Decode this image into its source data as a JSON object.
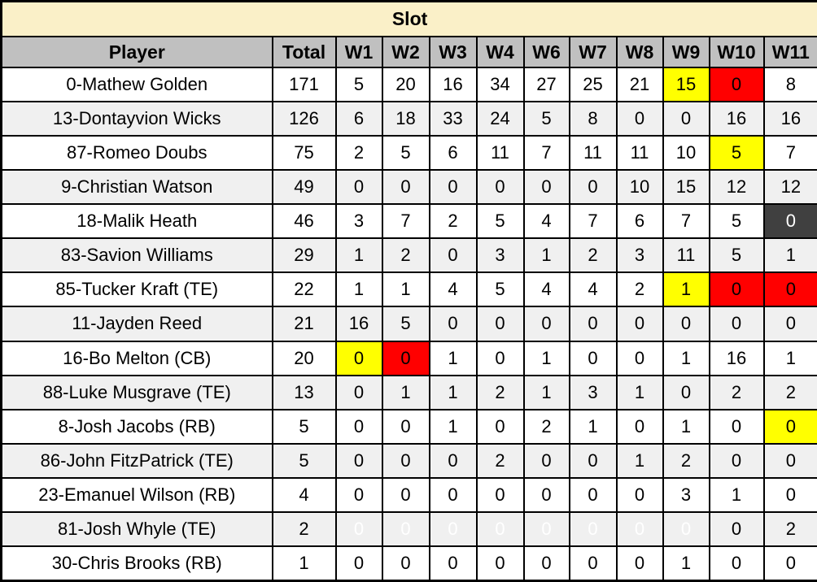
{
  "chart_data": {
    "type": "table",
    "title": "Slot",
    "columns": [
      "Player",
      "Total",
      "W1",
      "W2",
      "W3",
      "W4",
      "W6",
      "W7",
      "W8",
      "W9",
      "W10",
      "W11"
    ],
    "rows": [
      {
        "player": "0-Mathew Golden",
        "total": "171",
        "weeks": [
          {
            "v": "5"
          },
          {
            "v": "20"
          },
          {
            "v": "16"
          },
          {
            "v": "34"
          },
          {
            "v": "27"
          },
          {
            "v": "25"
          },
          {
            "v": "21"
          },
          {
            "v": "15",
            "hl": "yellow"
          },
          {
            "v": "0",
            "hl": "red"
          },
          {
            "v": "8"
          }
        ]
      },
      {
        "player": "13-Dontayvion Wicks",
        "total": "126",
        "weeks": [
          {
            "v": "6"
          },
          {
            "v": "18"
          },
          {
            "v": "33"
          },
          {
            "v": "24"
          },
          {
            "v": "5",
            "hl": "yellow"
          },
          {
            "v": "8",
            "hl": "yellow"
          },
          {
            "v": "0",
            "hl": "red"
          },
          {
            "v": "0",
            "hl": "red"
          },
          {
            "v": "16"
          },
          {
            "v": "16"
          }
        ]
      },
      {
        "player": "87-Romeo Doubs",
        "total": "75",
        "weeks": [
          {
            "v": "2"
          },
          {
            "v": "5"
          },
          {
            "v": "6"
          },
          {
            "v": "11"
          },
          {
            "v": "7"
          },
          {
            "v": "11"
          },
          {
            "v": "11"
          },
          {
            "v": "10"
          },
          {
            "v": "5",
            "hl": "yellow"
          },
          {
            "v": "7"
          }
        ]
      },
      {
        "player": "9-Christian Watson",
        "total": "49",
        "weeks": [
          {
            "v": "0",
            "hl": "red"
          },
          {
            "v": "0",
            "hl": "red"
          },
          {
            "v": "0",
            "hl": "red"
          },
          {
            "v": "0",
            "hl": "red"
          },
          {
            "v": "0",
            "hl": "red"
          },
          {
            "v": "0",
            "hl": "red"
          },
          {
            "v": "10"
          },
          {
            "v": "15"
          },
          {
            "v": "12"
          },
          {
            "v": "12"
          }
        ]
      },
      {
        "player": "18-Malik Heath",
        "total": "46",
        "weeks": [
          {
            "v": "3"
          },
          {
            "v": "7"
          },
          {
            "v": "2"
          },
          {
            "v": "5"
          },
          {
            "v": "4"
          },
          {
            "v": "7"
          },
          {
            "v": "6"
          },
          {
            "v": "7"
          },
          {
            "v": "5"
          },
          {
            "v": "0",
            "hl": "dark"
          }
        ]
      },
      {
        "player": "83-Savion Williams",
        "total": "29",
        "weeks": [
          {
            "v": "1"
          },
          {
            "v": "2"
          },
          {
            "v": "0"
          },
          {
            "v": "3"
          },
          {
            "v": "1"
          },
          {
            "v": "2"
          },
          {
            "v": "3"
          },
          {
            "v": "11"
          },
          {
            "v": "5"
          },
          {
            "v": "1"
          }
        ]
      },
      {
        "player": "85-Tucker Kraft (TE)",
        "total": "22",
        "weeks": [
          {
            "v": "1"
          },
          {
            "v": "1"
          },
          {
            "v": "4"
          },
          {
            "v": "5"
          },
          {
            "v": "4"
          },
          {
            "v": "4"
          },
          {
            "v": "2"
          },
          {
            "v": "1",
            "hl": "yellow"
          },
          {
            "v": "0",
            "hl": "red"
          },
          {
            "v": "0",
            "hl": "red"
          }
        ]
      },
      {
        "player": "11-Jayden Reed",
        "total": "21",
        "weeks": [
          {
            "v": "16"
          },
          {
            "v": "5",
            "hl": "yellow"
          },
          {
            "v": "0",
            "hl": "red"
          },
          {
            "v": "0",
            "hl": "red"
          },
          {
            "v": "0",
            "hl": "red"
          },
          {
            "v": "0",
            "hl": "red"
          },
          {
            "v": "0",
            "hl": "red"
          },
          {
            "v": "0",
            "hl": "red"
          },
          {
            "v": "0",
            "hl": "red"
          },
          {
            "v": "0",
            "hl": "red"
          }
        ]
      },
      {
        "player": "16-Bo Melton (CB)",
        "total": "20",
        "weeks": [
          {
            "v": "0",
            "hl": "yellow"
          },
          {
            "v": "0",
            "hl": "red"
          },
          {
            "v": "1"
          },
          {
            "v": "0"
          },
          {
            "v": "1"
          },
          {
            "v": "0"
          },
          {
            "v": "0"
          },
          {
            "v": "1"
          },
          {
            "v": "16"
          },
          {
            "v": "1"
          }
        ]
      },
      {
        "player": "88-Luke Musgrave (TE)",
        "total": "13",
        "weeks": [
          {
            "v": "0"
          },
          {
            "v": "1"
          },
          {
            "v": "1"
          },
          {
            "v": "2"
          },
          {
            "v": "1"
          },
          {
            "v": "3"
          },
          {
            "v": "1"
          },
          {
            "v": "0"
          },
          {
            "v": "2"
          },
          {
            "v": "2"
          }
        ]
      },
      {
        "player": "8-Josh Jacobs (RB)",
        "total": "5",
        "weeks": [
          {
            "v": "0"
          },
          {
            "v": "0"
          },
          {
            "v": "1"
          },
          {
            "v": "0"
          },
          {
            "v": "2"
          },
          {
            "v": "1"
          },
          {
            "v": "0"
          },
          {
            "v": "1"
          },
          {
            "v": "0"
          },
          {
            "v": "0",
            "hl": "yellow"
          }
        ]
      },
      {
        "player": "86-John FitzPatrick (TE)",
        "total": "5",
        "weeks": [
          {
            "v": "0"
          },
          {
            "v": "0"
          },
          {
            "v": "0"
          },
          {
            "v": "2"
          },
          {
            "v": "0"
          },
          {
            "v": "0"
          },
          {
            "v": "1"
          },
          {
            "v": "2"
          },
          {
            "v": "0"
          },
          {
            "v": "0"
          }
        ]
      },
      {
        "player": "23-Emanuel Wilson (RB)",
        "total": "4",
        "weeks": [
          {
            "v": "0"
          },
          {
            "v": "0"
          },
          {
            "v": "0"
          },
          {
            "v": "0"
          },
          {
            "v": "0"
          },
          {
            "v": "0"
          },
          {
            "v": "0"
          },
          {
            "v": "3"
          },
          {
            "v": "1"
          },
          {
            "v": "0"
          }
        ]
      },
      {
        "player": "81-Josh Whyle (TE)",
        "total": "2",
        "weeks": [
          {
            "v": "0",
            "hl": "dark"
          },
          {
            "v": "0",
            "hl": "dark"
          },
          {
            "v": "0",
            "hl": "dark"
          },
          {
            "v": "0",
            "hl": "dark"
          },
          {
            "v": "0",
            "hl": "dark"
          },
          {
            "v": "0",
            "hl": "dark"
          },
          {
            "v": "0",
            "hl": "dark"
          },
          {
            "v": "0",
            "hl": "dark"
          },
          {
            "v": "0"
          },
          {
            "v": "2"
          }
        ]
      },
      {
        "player": "30-Chris Brooks (RB)",
        "total": "1",
        "weeks": [
          {
            "v": "0"
          },
          {
            "v": "0"
          },
          {
            "v": "0"
          },
          {
            "v": "0"
          },
          {
            "v": "0"
          },
          {
            "v": "0"
          },
          {
            "v": "0"
          },
          {
            "v": "1"
          },
          {
            "v": "0"
          },
          {
            "v": "0"
          }
        ]
      }
    ],
    "legend_colors": {
      "title_bg": "#FAF0C8",
      "header_bg": "#C0C0C0",
      "alt_row_bg": "#F0F0F0",
      "highlight_yellow": "#FFFF00",
      "highlight_red": "#FF0000",
      "highlight_dark": "#404040",
      "grid": "#000000"
    }
  }
}
